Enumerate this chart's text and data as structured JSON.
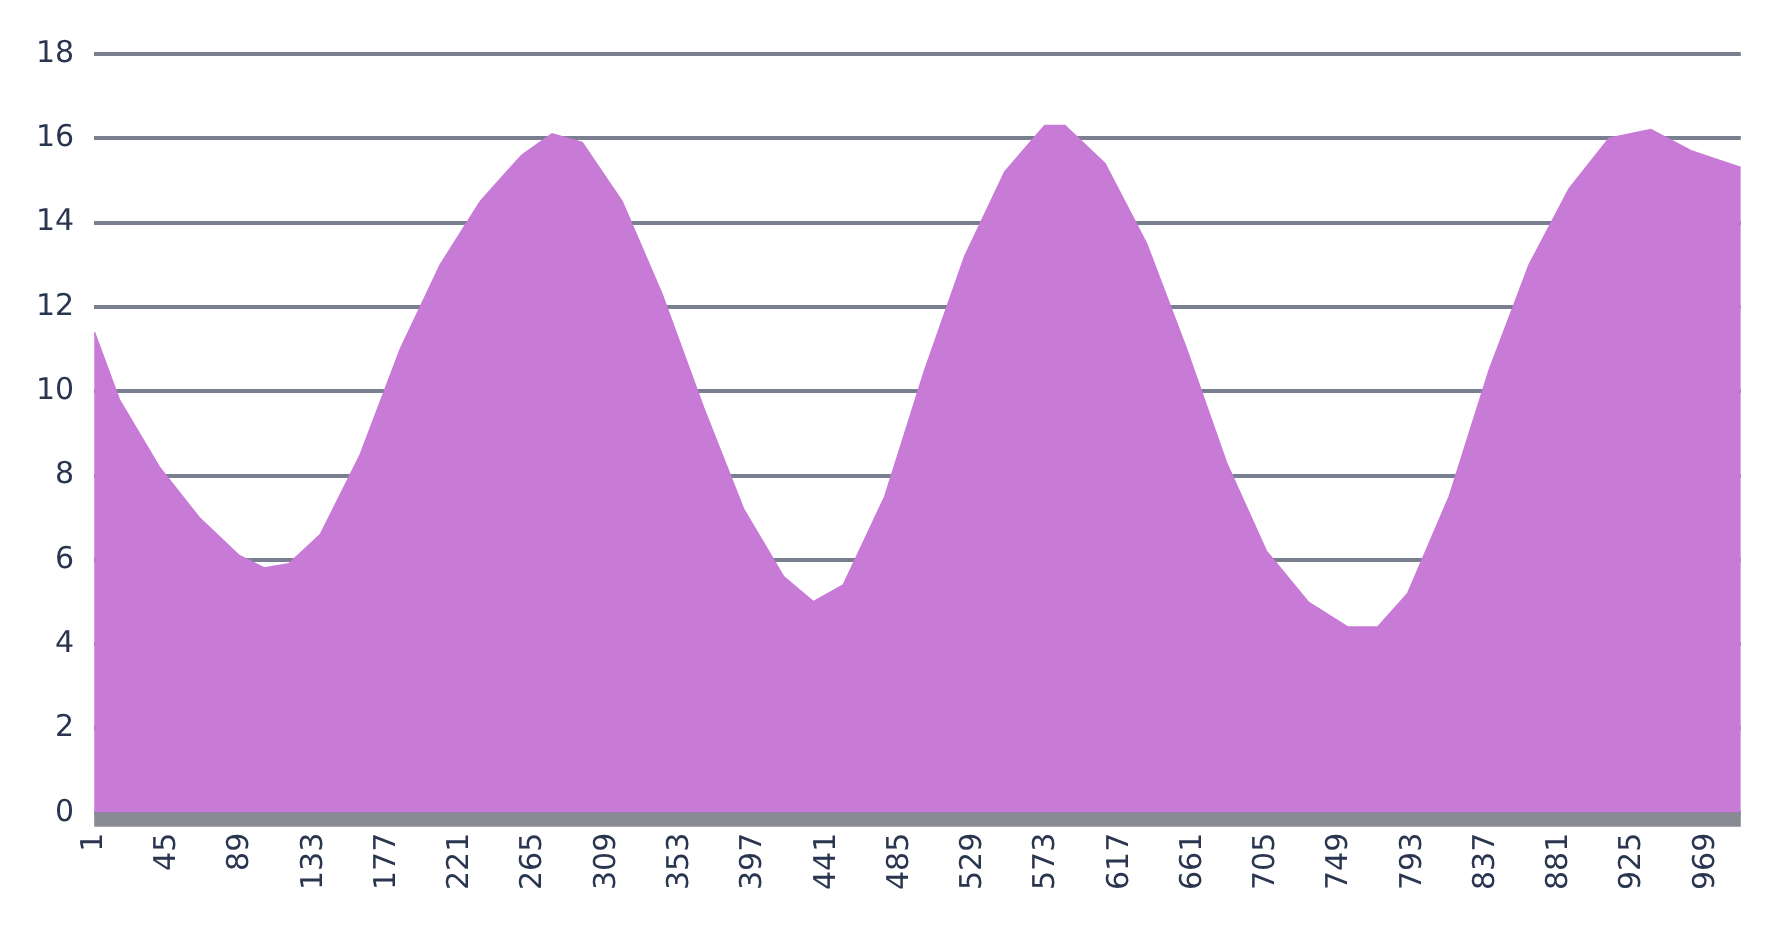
{
  "chart_data": {
    "type": "area",
    "x": [
      1,
      16,
      40,
      64,
      88,
      103,
      118,
      137,
      161,
      185,
      209,
      233,
      258,
      276,
      294,
      318,
      342,
      367,
      391,
      415,
      433,
      451,
      476,
      500,
      524,
      548,
      572,
      584,
      608,
      633,
      657,
      681,
      705,
      730,
      754,
      772,
      790,
      815,
      839,
      863,
      887,
      911,
      936,
      960,
      990
    ],
    "series": [
      {
        "color": "#c77ad6",
        "values": [
          11.4,
          9.8,
          8.2,
          7.0,
          6.1,
          5.8,
          5.9,
          6.6,
          8.5,
          11.0,
          13.0,
          14.5,
          15.6,
          16.1,
          15.9,
          14.5,
          12.3,
          9.6,
          7.2,
          5.6,
          5.0,
          5.4,
          7.5,
          10.5,
          13.2,
          15.2,
          16.3,
          16.3,
          15.4,
          13.5,
          11.0,
          8.3,
          6.2,
          5.0,
          4.4,
          4.4,
          5.2,
          7.5,
          10.5,
          13.0,
          14.8,
          16.0,
          16.2,
          15.7,
          15.3
        ]
      }
    ],
    "xlim": [
      1,
      990
    ],
    "xticks": [
      1,
      45,
      89,
      133,
      177,
      221,
      265,
      309,
      353,
      397,
      441,
      485,
      529,
      573,
      617,
      661,
      705,
      749,
      793,
      837,
      881,
      925,
      969
    ],
    "ylim": [
      0,
      18
    ],
    "yticks": [
      0,
      2,
      4,
      6,
      8,
      10,
      12,
      14,
      16,
      18
    ],
    "grid": "y",
    "legend": false
  }
}
